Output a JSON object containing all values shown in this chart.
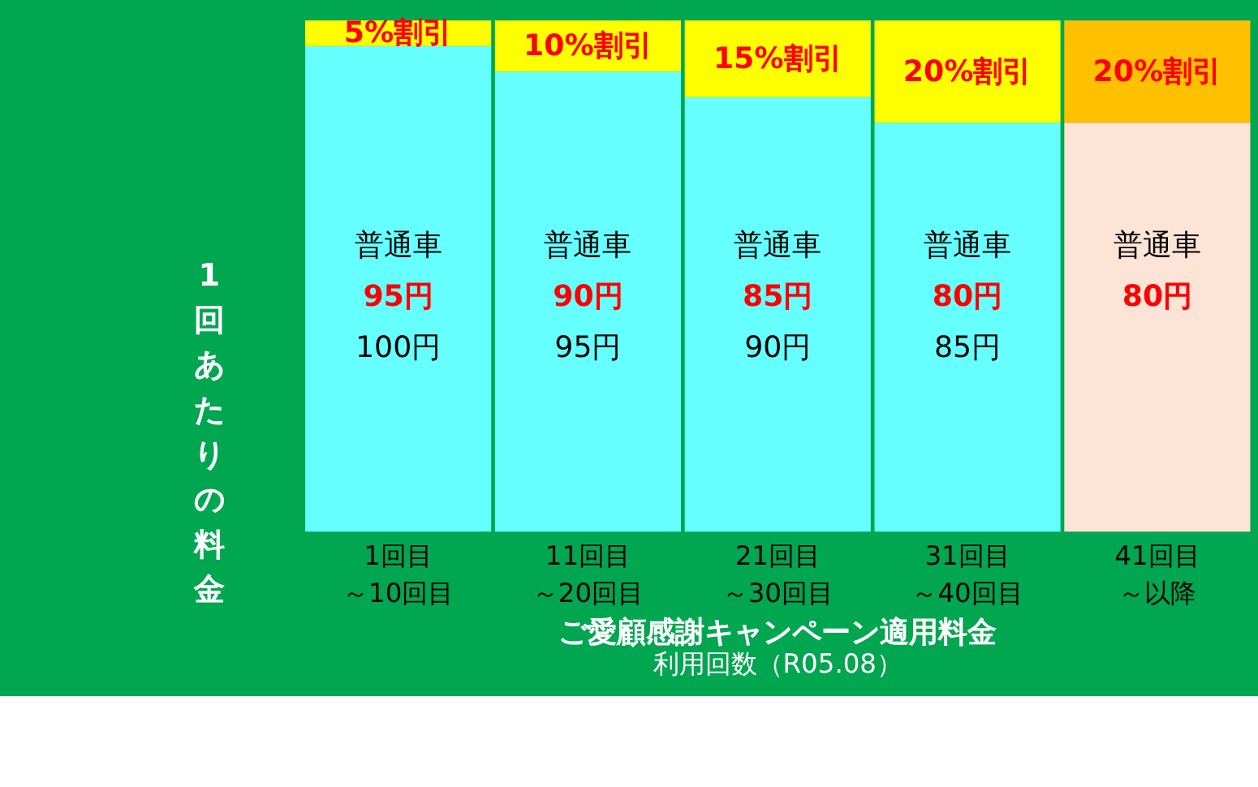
{
  "chart_data": {
    "type": "bar",
    "stacked": true,
    "ylabel": "1回あたりの料金",
    "xlabel": "利用回数（R05.08）",
    "categories": [
      "1回目～10回目",
      "11回目～20回目",
      "21回目～30回目",
      "31回目～40回目",
      "41回目～以降"
    ],
    "series": [
      {
        "colors": [
          "#66ffff",
          "#66ffff",
          "#66ffff",
          "#66ffff",
          "#fde4d6"
        ],
        "values": [
          95,
          90,
          85,
          80,
          80
        ],
        "value_labels": [
          "95円",
          "90円",
          "85円",
          "80円",
          "80円"
        ]
      },
      {
        "colors": [
          "#ffff00",
          "#ffff00",
          "#ffff00",
          "#ffff00",
          "#ffc000"
        ],
        "values": [
          5,
          10,
          15,
          20,
          20
        ],
        "value_labels": [
          "5%割引",
          "10%割引",
          "15%割引",
          "20%割引",
          "20%割引"
        ]
      }
    ],
    "ylim": [
      0,
      100
    ],
    "tick_labels": "x",
    "grid": false,
    "annotations": [
      "普通車",
      "普通車",
      "普通車",
      "普通車",
      "普通車",
      "100円",
      "95円",
      "90円",
      "85円",
      "ご愛顧感謝キャンペーン適用料金"
    ]
  }
}
